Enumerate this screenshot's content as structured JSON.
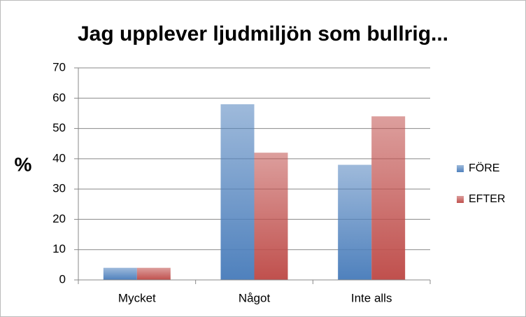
{
  "chart_data": {
    "type": "bar",
    "title": "Jag upplever ljudmiljön som bullrig...",
    "y_label": "%",
    "categories": [
      "Mycket",
      "Något",
      "Inte alls"
    ],
    "series": [
      {
        "name": "FÖRE",
        "color": "#4f81bd",
        "values": [
          4,
          58,
          38
        ]
      },
      {
        "name": "EFTER",
        "color": "#c0504d",
        "values": [
          4,
          42,
          54
        ]
      }
    ],
    "ylim": [
      0,
      70
    ],
    "yticks": [
      0,
      10,
      20,
      30,
      40,
      50,
      60,
      70
    ],
    "grid": true,
    "legend": "right"
  }
}
